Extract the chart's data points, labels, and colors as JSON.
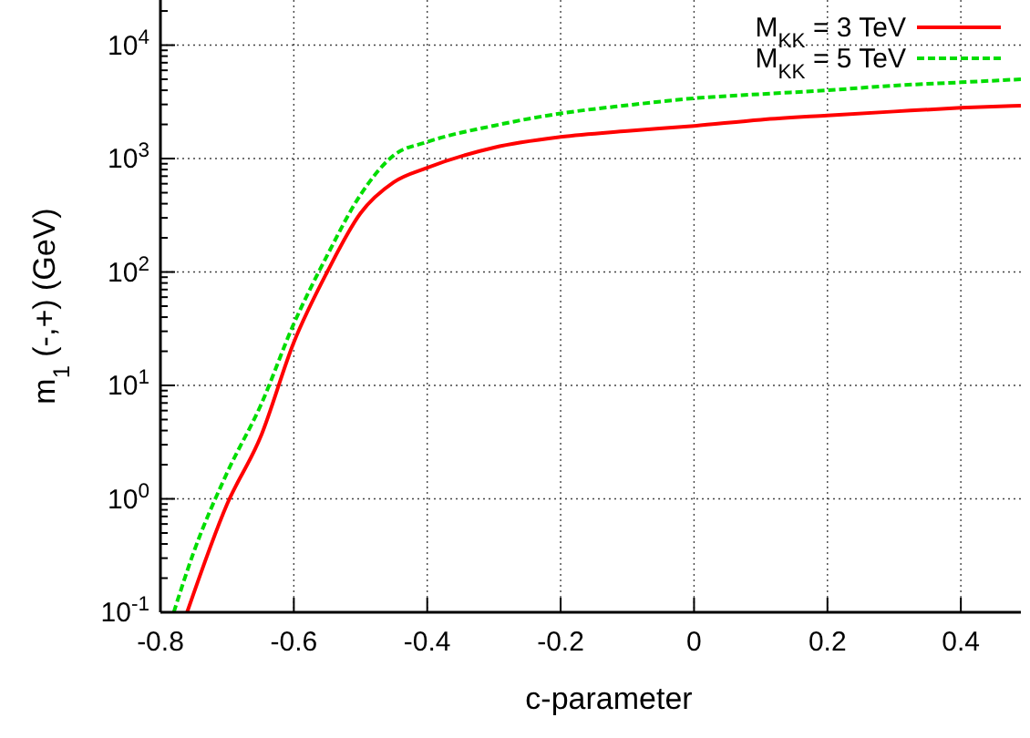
{
  "chart_data": {
    "type": "line",
    "xlabel": "c-parameter",
    "ylabel": "m$_{1}$ (-,+) (GeV)",
    "log": "y",
    "grid": true,
    "legend": "top right",
    "xlim": [
      -0.8,
      0.49
    ],
    "ylim": [
      0.1,
      25000
    ],
    "xticks": [
      -0.8,
      -0.6,
      -0.4,
      -0.2,
      0,
      0.2,
      0.4
    ],
    "yticks": [
      {
        "value": 0.1,
        "label": "10$^{-1}$"
      },
      {
        "value": 1,
        "label": "10$^{0}$"
      },
      {
        "value": 10,
        "label": "10$^{1}$"
      },
      {
        "value": 100,
        "label": "10$^{2}$"
      },
      {
        "value": 1000,
        "label": "10$^{3}$"
      },
      {
        "value": 10000,
        "label": "10$^{4}$"
      }
    ],
    "series": [
      {
        "name": "M$_{KK}$ = 3 TeV",
        "color": "#ff0000",
        "line_style": "solid",
        "x": [
          -0.76,
          -0.7,
          -0.65,
          -0.6,
          -0.55,
          -0.5,
          -0.45,
          -0.4,
          -0.3,
          -0.2,
          -0.1,
          0,
          0.1,
          0.2,
          0.3,
          0.4,
          0.49
        ],
        "values": [
          0.1,
          0.9,
          3.5,
          24,
          100,
          330,
          620,
          830,
          1250,
          1550,
          1750,
          1940,
          2200,
          2400,
          2600,
          2800,
          2930
        ]
      },
      {
        "name": "M$_{KK}$ = 5 TeV",
        "color": "#00dd00",
        "line_style": "dashed",
        "x": [
          -0.78,
          -0.75,
          -0.7,
          -0.65,
          -0.6,
          -0.55,
          -0.5,
          -0.45,
          -0.4,
          -0.3,
          -0.2,
          -0.1,
          0,
          0.1,
          0.2,
          0.3,
          0.4,
          0.49
        ],
        "values": [
          0.1,
          0.34,
          1.7,
          6.6,
          35,
          140,
          480,
          1070,
          1400,
          1950,
          2500,
          2950,
          3400,
          3700,
          4000,
          4400,
          4700,
          5000
        ]
      }
    ]
  }
}
